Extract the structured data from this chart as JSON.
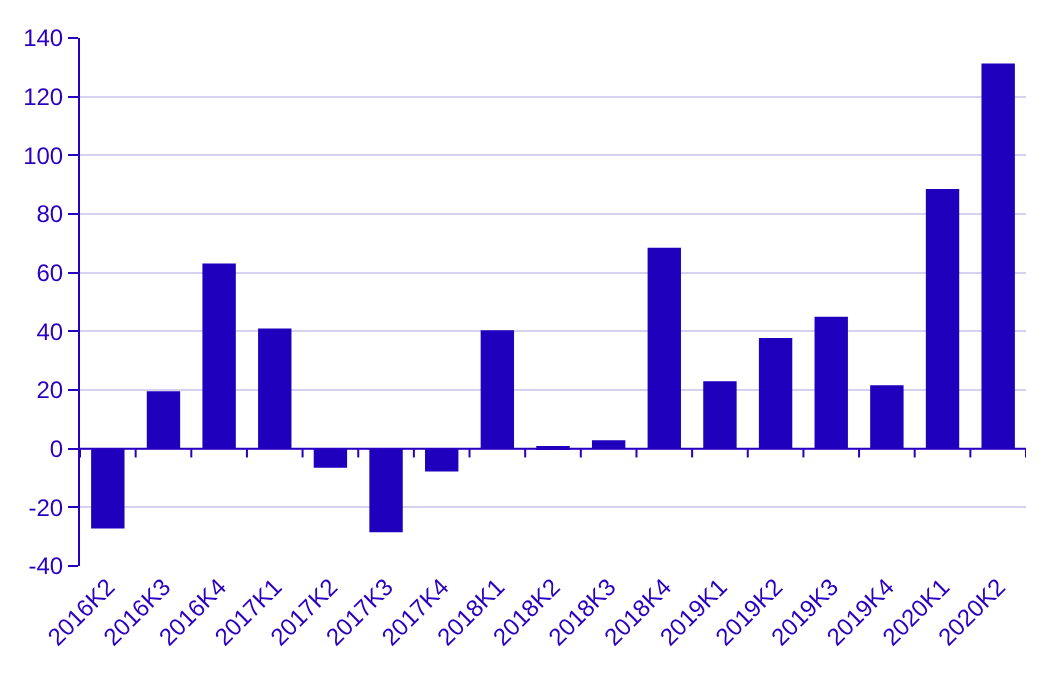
{
  "chart_data": {
    "type": "bar",
    "categories": [
      "2016K2",
      "2016K3",
      "2016K4",
      "2017K1",
      "2017K2",
      "2017K3",
      "2017K4",
      "2018K1",
      "2018K2",
      "2018K3",
      "2018K4",
      "2019K1",
      "2019K2",
      "2019K3",
      "2019K4",
      "2020K1",
      "2020K2"
    ],
    "values": [
      -27.2,
      19.6,
      63.1,
      41.0,
      -6.5,
      -28.5,
      -7.8,
      40.4,
      0.9,
      2.9,
      68.5,
      23.0,
      37.7,
      45.0,
      21.6,
      88.5,
      131.3
    ],
    "color": "#1f00bd",
    "ylim": [
      -40,
      140
    ],
    "yticks": [
      -40,
      -20,
      0,
      20,
      40,
      60,
      80,
      100,
      120,
      140
    ],
    "grid": "y",
    "ref_lines": [
      {
        "axis": "y",
        "value": 0,
        "color": "#2a00c0",
        "line_style": "solid"
      }
    ]
  }
}
